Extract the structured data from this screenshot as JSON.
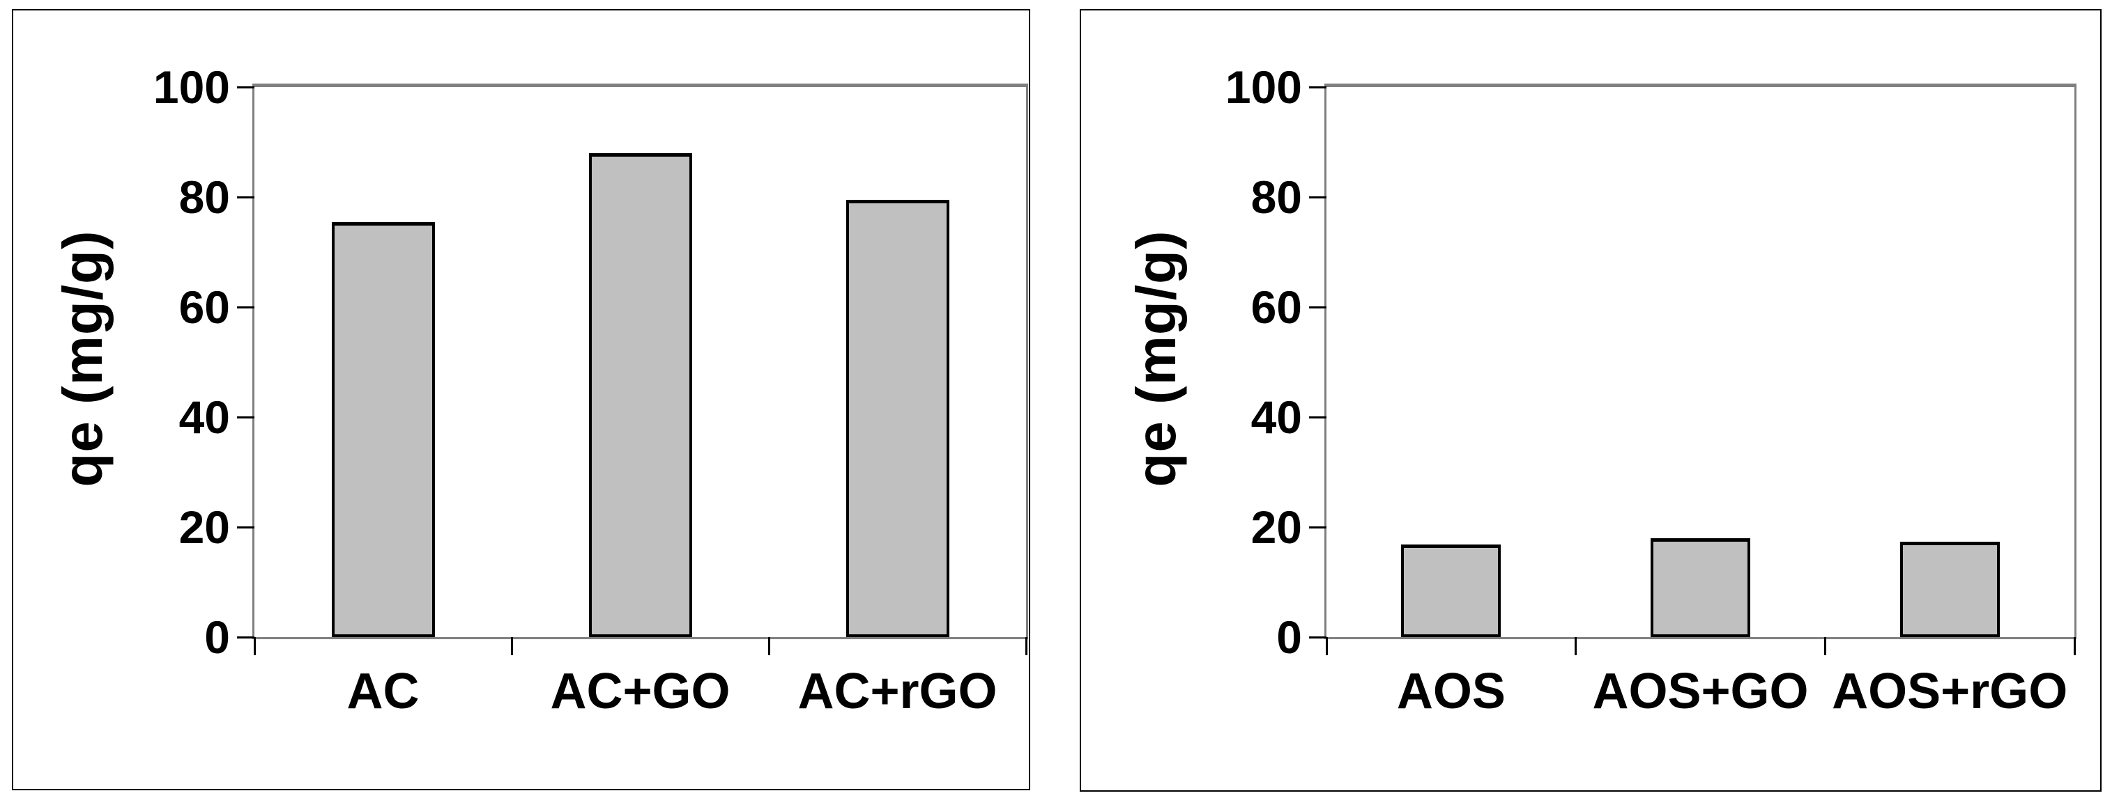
{
  "figure": {
    "background": "#ffffff",
    "frame_color": "#000000",
    "axis_color": "#808080",
    "tick_color": "#000000",
    "text_color": "#000000"
  },
  "chart_data": [
    {
      "type": "bar",
      "panel": "left",
      "title": "",
      "xlabel": "",
      "ylabel": "qe (mg/g)",
      "categories": [
        "AC",
        "AC+GO",
        "AC+rGO"
      ],
      "values": [
        75.5,
        88.0,
        79.5
      ],
      "ylim": [
        0,
        100
      ],
      "yticks": [
        0,
        20,
        40,
        60,
        80,
        100
      ],
      "grid": false,
      "legend": "none",
      "bar_fill": "#c0c0c0",
      "bar_border": "#000000"
    },
    {
      "type": "bar",
      "panel": "right",
      "title": "",
      "xlabel": "",
      "ylabel": "qe (mg/g)",
      "categories": [
        "AOS",
        "AOS+GO",
        "AOS+rGO"
      ],
      "values": [
        16.8,
        18.0,
        17.3
      ],
      "ylim": [
        0,
        100
      ],
      "yticks": [
        0,
        20,
        40,
        60,
        80,
        100
      ],
      "grid": false,
      "legend": "none",
      "bar_fill": "#c0c0c0",
      "bar_border": "#000000"
    }
  ]
}
